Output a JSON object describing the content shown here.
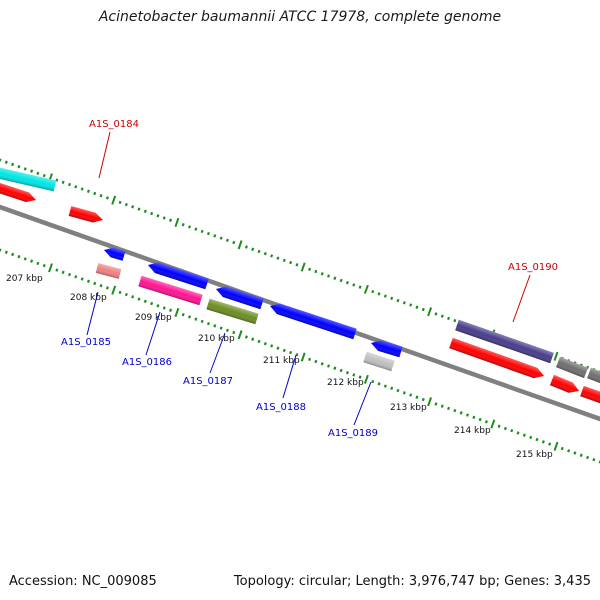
{
  "header": {
    "title": "Acinetobacter baumannii ATCC 17978, complete genome"
  },
  "footer": {
    "accession": "Accession: NC_009085",
    "summary": "Topology: circular; Length: 3,976,747 bp; Genes: 3,435"
  },
  "colors": {
    "backbone": "#808080",
    "tick_marks": "#1e8c1e",
    "label_top": "#cc0000",
    "label_bottom": "#0000cc"
  },
  "ticks": [
    "207 kbp",
    "208 kbp",
    "209 kbp",
    "210 kbp",
    "211 kbp",
    "212 kbp",
    "213 kbp",
    "214 kbp",
    "215 kbp"
  ],
  "gene_labels": [
    "A1S_0184",
    "A1S_0185",
    "A1S_0186",
    "A1S_0187",
    "A1S_0188",
    "A1S_0189",
    "A1S_0190"
  ],
  "features": [
    {
      "color": "#00e5e5"
    },
    {
      "color": "#ff0000"
    },
    {
      "color": "#ff0000"
    },
    {
      "color": "#0000ff"
    },
    {
      "color": "#f08080"
    },
    {
      "color": "#0000ff"
    },
    {
      "color": "#ff1493"
    },
    {
      "color": "#0000ff"
    },
    {
      "color": "#6b8e23"
    },
    {
      "color": "#0000ff"
    },
    {
      "color": "#0000ff"
    },
    {
      "color": "#c0c0c0"
    },
    {
      "color": "#483d8b"
    },
    {
      "color": "#ff0000"
    },
    {
      "color": "#707070"
    },
    {
      "color": "#ff0000"
    },
    {
      "color": "#707070"
    },
    {
      "color": "#ff0000"
    }
  ]
}
